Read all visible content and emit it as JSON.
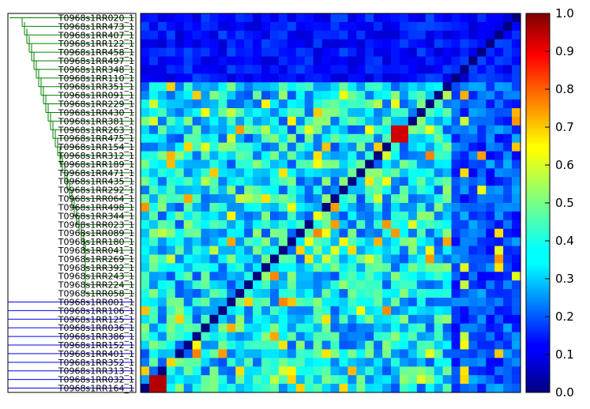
{
  "chart_data": {
    "type": "heatmap",
    "title": "",
    "xlabel": "",
    "ylabel": "",
    "row_labels": [
      "T0968s1RR020_1",
      "T0968s1RR473_1",
      "T0968s1RR407_1",
      "T0968s1RR122_1",
      "T0968s1RR458_1",
      "T0968s1RR497_1",
      "T0968s1RR348_1",
      "T0968s1RR110_1",
      "T0968s1RR351_1",
      "T0968s1RR091_1",
      "T0968s1RR229_1",
      "T0968s1RR430_1",
      "T0968s1RR381_1",
      "T0968s1RR263_1",
      "T0968s1RR475_1",
      "T0968s1RR154_1",
      "T0968s1RR312_1",
      "T0968s1RR189_1",
      "T0968s1RR471_1",
      "T0968s1RR435_1",
      "T0968s1RR292_1",
      "T0968s1RR064_1",
      "T0968s1RR498_1",
      "T0968s1RR344_1",
      "T0968s1RR023_1",
      "T0968s1RR089_1",
      "T0968s1RR180_1",
      "T0968s1RR041_1",
      "T0968s1RR269_1",
      "T0968s1RR392_1",
      "T0968s1RR243_1",
      "T0968s1RR224_1",
      "T0968s1RR058_1",
      "T0968s1RR001_1",
      "T0968s1RR106_1",
      "T0968s1RR125_1",
      "T0968s1RR036_1",
      "T0968s1RR386_1",
      "T0968s1RR152_1",
      "T0968s1RR401_1",
      "T0968s1RR352_1",
      "T0968s1RR313_1",
      "T0968s1RR032_1",
      "T0968s1RR164_1"
    ],
    "colorbar": {
      "vmin": 0.0,
      "vmax": 1.0,
      "ticks": [
        "0.0",
        "0.1",
        "0.2",
        "0.3",
        "0.4",
        "0.5",
        "0.6",
        "0.7",
        "0.8",
        "0.9",
        "1.0"
      ],
      "colormap": "jet"
    },
    "dendrogram": {
      "cluster_colors": [
        "#008000",
        "#0000ff"
      ],
      "green_rows": [
        0,
        32
      ],
      "blue_rows": [
        33,
        43
      ]
    },
    "x_columns": 44,
    "grid": false,
    "legend": "colorbar on right"
  }
}
